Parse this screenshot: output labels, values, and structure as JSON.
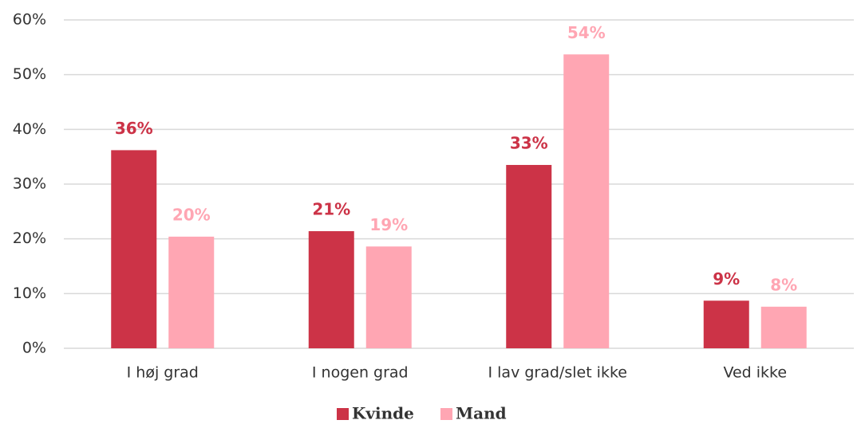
{
  "chart_data": {
    "type": "bar",
    "categories": [
      "I høj grad",
      "I nogen grad",
      "I lav grad/slet ikke",
      "Ved ikke"
    ],
    "series": [
      {
        "name": "Kvinde",
        "color": "#cc3347",
        "values": [
          36.2,
          21.4,
          33.5,
          8.7
        ],
        "value_labels": [
          "36%",
          "21%",
          "33%",
          "9%"
        ]
      },
      {
        "name": "Mand",
        "color": "#ffa6b3",
        "values": [
          20.4,
          18.6,
          53.7,
          7.6
        ],
        "value_labels": [
          "20%",
          "19%",
          "54%",
          "8%"
        ]
      }
    ],
    "ylim": [
      0,
      60
    ],
    "yticks": [
      {
        "value": 0,
        "label": "0%"
      },
      {
        "value": 10,
        "label": "10%"
      },
      {
        "value": 20,
        "label": "20%"
      },
      {
        "value": 30,
        "label": "30%"
      },
      {
        "value": 40,
        "label": "40%"
      },
      {
        "value": 50,
        "label": "50%"
      },
      {
        "value": 60,
        "label": "60%"
      }
    ],
    "grid": true,
    "legend": "bottom"
  }
}
